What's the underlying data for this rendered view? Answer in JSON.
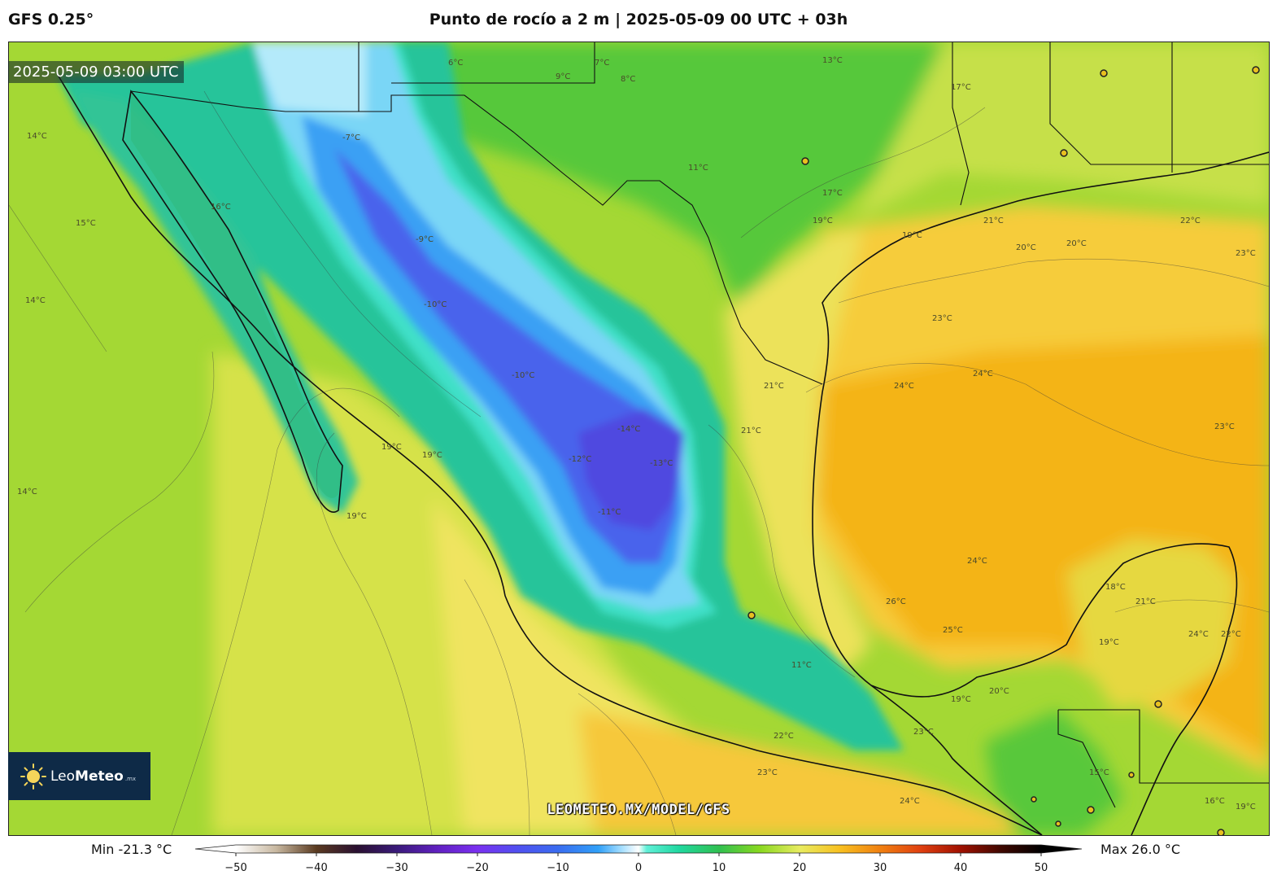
{
  "header": {
    "model": "GFS 0.25°",
    "title": "Punto de rocío a 2 m | 2025-05-09 00 UTC + 03h"
  },
  "map": {
    "timestamp": "2025-05-09 03:00 UTC",
    "variable": "2 m dew point",
    "units": "°C",
    "contour_labels": [
      "14°C",
      "15°C",
      "16°C",
      "14°C",
      "14°C",
      "19°C",
      "19°C",
      "19°C",
      "13°C",
      "17°C",
      "11°C",
      "17°C",
      "19°C",
      "19°C",
      "21°C",
      "22°C",
      "20°C",
      "20°C",
      "23°C",
      "23°C",
      "24°C",
      "24°C",
      "23°C",
      "21°C",
      "21°C",
      "-7°C",
      "-9°C",
      "-10°C",
      "-10°C",
      "-12°C",
      "-11°C",
      "-14°C",
      "-13°C",
      "24°C",
      "26°C",
      "25°C",
      "18°C",
      "21°C",
      "19°C",
      "24°C",
      "22°C",
      "11°C",
      "19°C",
      "20°C",
      "23°C",
      "22°C",
      "23°C",
      "24°C",
      "15°C",
      "16°C",
      "19°C",
      "6°C",
      "7°C",
      "9°C",
      "8°C"
    ],
    "cities": 11,
    "watermark": "LEOMETEO.MX/MODEL/GFS"
  },
  "logo": {
    "name_plain": "Leo",
    "name_bold": "Meteo",
    "tld": ".mx"
  },
  "colorbar": {
    "min_label": "Min -21.3 °C",
    "max_label": "Max 26.0 °C",
    "range": [
      -50,
      50
    ],
    "ticks": [
      "−50",
      "−40",
      "−30",
      "−20",
      "−10",
      "0",
      "10",
      "20",
      "30",
      "40",
      "50"
    ],
    "stops": [
      {
        "v": -50,
        "c": "#ffffff"
      },
      {
        "v": -45,
        "c": "#c8b8a0"
      },
      {
        "v": -40,
        "c": "#5a3a20"
      },
      {
        "v": -35,
        "c": "#2a1030"
      },
      {
        "v": -30,
        "c": "#3a1a7a"
      },
      {
        "v": -25,
        "c": "#6020c0"
      },
      {
        "v": -20,
        "c": "#7a30f0"
      },
      {
        "v": -15,
        "c": "#5050f0"
      },
      {
        "v": -10,
        "c": "#3a6cf0"
      },
      {
        "v": -5,
        "c": "#30a0f8"
      },
      {
        "v": -2,
        "c": "#a8e0ff"
      },
      {
        "v": 0,
        "c": "#ffffff"
      },
      {
        "v": 1,
        "c": "#60f0d8"
      },
      {
        "v": 5,
        "c": "#20d8a0"
      },
      {
        "v": 10,
        "c": "#30c050"
      },
      {
        "v": 15,
        "c": "#88d820"
      },
      {
        "v": 20,
        "c": "#e8ec60"
      },
      {
        "v": 25,
        "c": "#f8c020"
      },
      {
        "v": 30,
        "c": "#f08010"
      },
      {
        "v": 35,
        "c": "#e04010"
      },
      {
        "v": 40,
        "c": "#a01000"
      },
      {
        "v": 45,
        "c": "#400800"
      },
      {
        "v": 50,
        "c": "#000000"
      }
    ]
  }
}
